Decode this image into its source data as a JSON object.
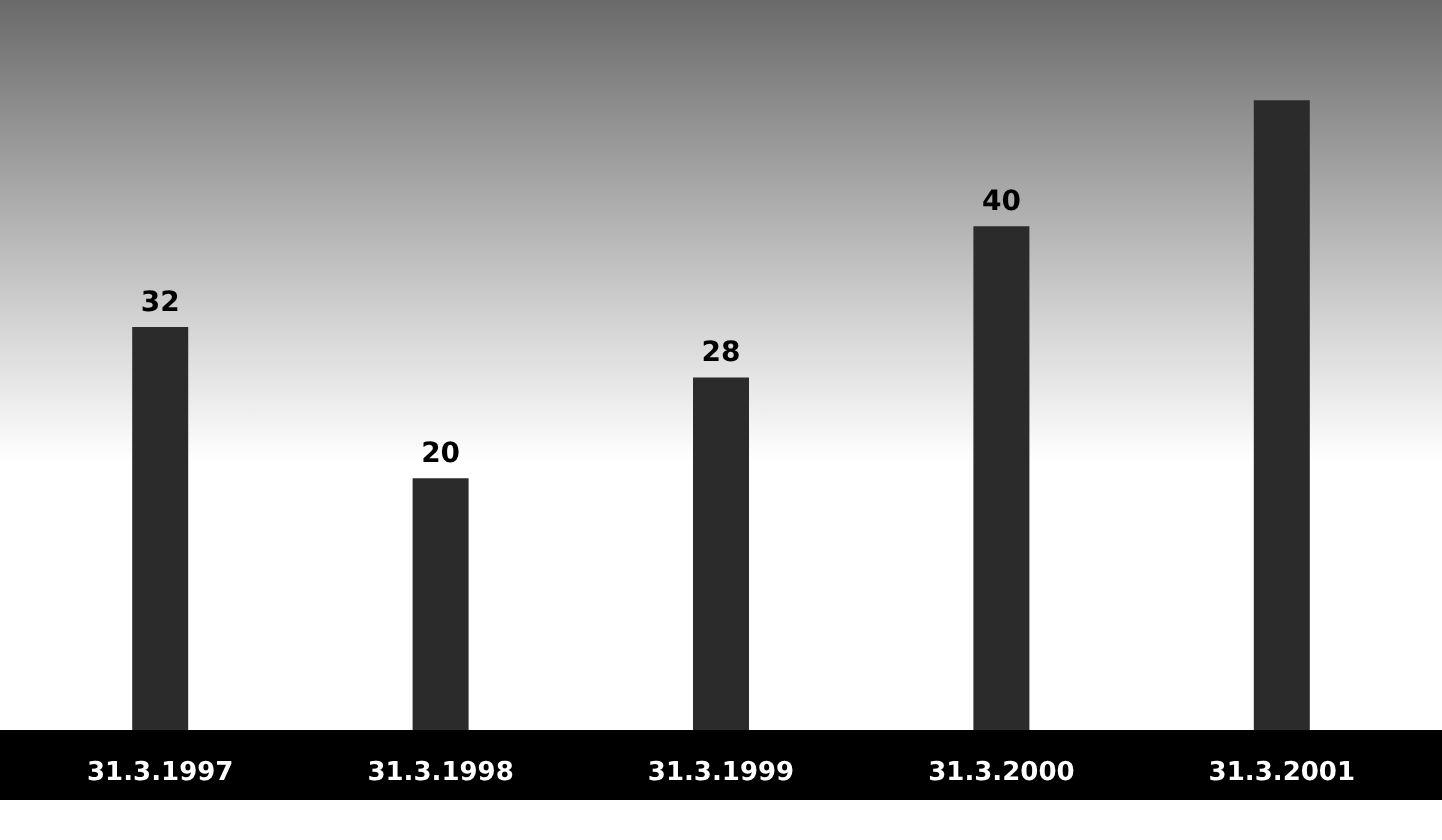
{
  "chart_data": {
    "type": "bar",
    "categories": [
      "31.3.1997",
      "31.3.1998",
      "31.3.1999",
      "31.3.2000",
      "31.3.2001"
    ],
    "values": [
      32,
      20,
      28,
      40,
      50
    ],
    "value_labels": [
      "32",
      "20",
      "28",
      "40",
      null
    ],
    "color": "#2b2b2b"
  }
}
